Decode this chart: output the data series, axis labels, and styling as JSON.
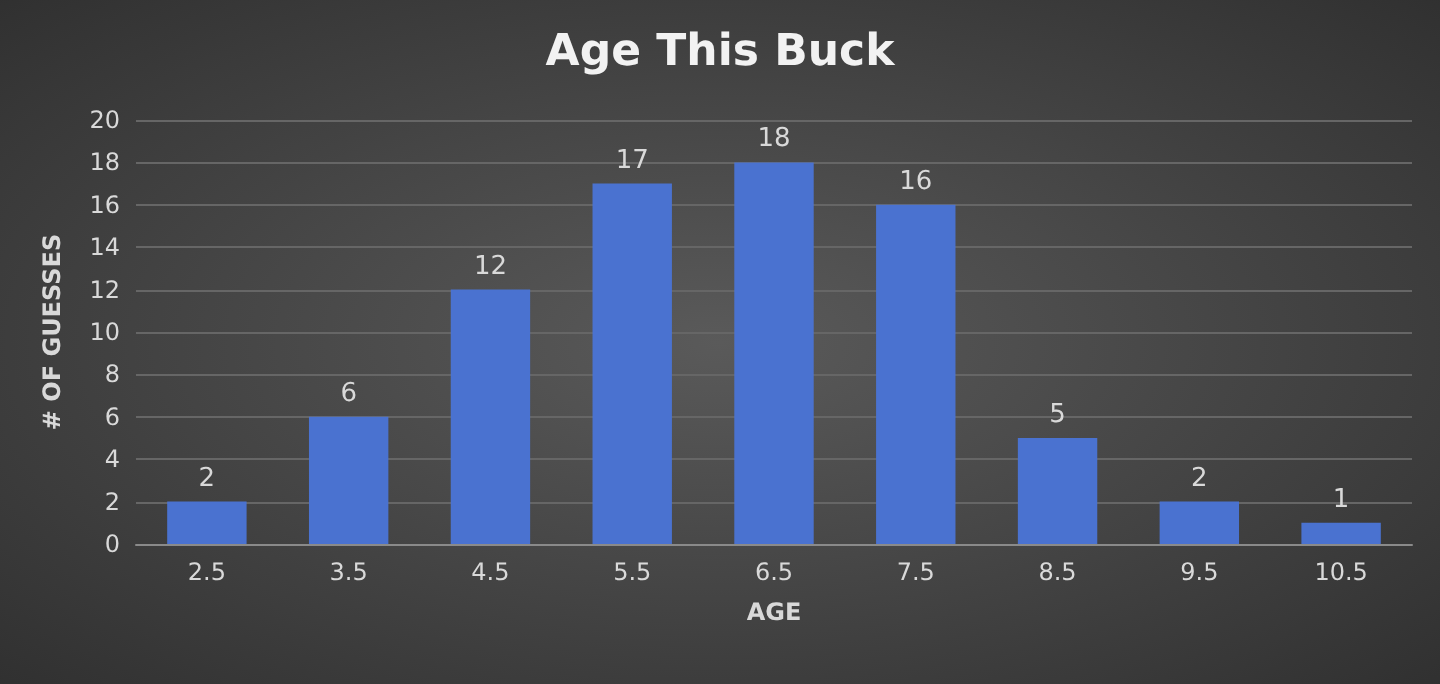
{
  "chart_data": {
    "type": "bar",
    "title": "Age This Buck",
    "xlabel": "AGE",
    "ylabel": "# OF GUESSES",
    "categories": [
      "2.5",
      "3.5",
      "4.5",
      "5.5",
      "6.5",
      "7.5",
      "8.5",
      "9.5",
      "10.5"
    ],
    "values": [
      2,
      6,
      12,
      17,
      18,
      16,
      5,
      2,
      1
    ],
    "color": "#4a72d0",
    "ylim": [
      0,
      20
    ],
    "yticks": [
      0,
      2,
      4,
      6,
      8,
      10,
      12,
      14,
      16,
      18,
      20
    ],
    "grid": "y",
    "data_labels": true
  }
}
